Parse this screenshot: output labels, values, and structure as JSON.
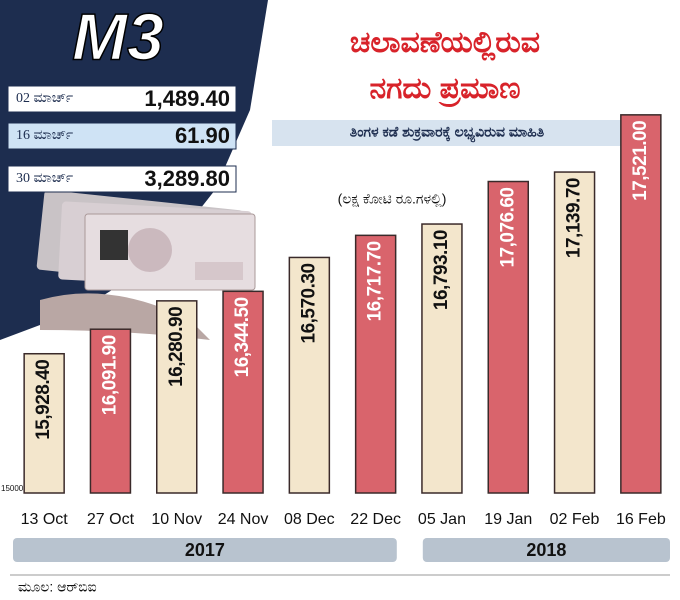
{
  "badge": "M3",
  "side_table": [
    {
      "label": "02 ಮಾರ್ಚ್",
      "value": "1,489.40"
    },
    {
      "label": "16 ಮಾರ್ಚ್",
      "value": "61.90"
    },
    {
      "label": "30 ಮಾರ್ಚ್",
      "value": "3,289.80"
    }
  ],
  "source": "ಮೂಲ: ಆರ್‌ಬಿಐ",
  "chart_data": {
    "type": "bar",
    "title": [
      "ಚಲಾವಣೆಯಲ್ಲಿರುವ",
      "ನಗದು ಪ್ರಮಾಣ"
    ],
    "subtitle": "ತಿಂಗಳ ಕಡೆ ಶುಕ್ರವಾರಕ್ಕೆ ಲಭ್ಯವಿರುವ ಮಾಹಿತಿ",
    "unit_label": "(ಲಕ್ಷ ಕೋಟಿ ರೂ.ಗಳಲ್ಲಿ)",
    "categories": [
      "13 Oct",
      "27 Oct",
      "10 Nov",
      "24 Nov",
      "08 Dec",
      "22 Dec",
      "05 Jan",
      "19 Jan",
      "02 Feb",
      "16 Feb"
    ],
    "groups": [
      "2017",
      "2018"
    ],
    "values": [
      15928.4,
      16091.9,
      16280.9,
      16344.5,
      16570.3,
      16717.7,
      16793.1,
      17076.6,
      17139.7,
      17521.0
    ],
    "value_labels": [
      "15,928.40",
      "16,091.90",
      "16,280.90",
      "16,344.50",
      "16,570.30",
      "16,717.70",
      "16,793.10",
      "17,076.60",
      "17,139.70",
      "17,521.00"
    ],
    "colors": [
      "#f3e6cc",
      "#d9646c",
      "#f3e6cc",
      "#d9646c",
      "#f3e6cc",
      "#d9646c",
      "#f3e6cc",
      "#d9646c",
      "#f3e6cc",
      "#d9646c"
    ],
    "label_colors": [
      "#111111",
      "#ffffff",
      "#111111",
      "#ffffff",
      "#111111",
      "#ffffff",
      "#111111",
      "#ffffff",
      "#111111",
      "#ffffff"
    ],
    "ylim": [
      15000,
      18000
    ],
    "yticks": [
      15000
    ]
  }
}
